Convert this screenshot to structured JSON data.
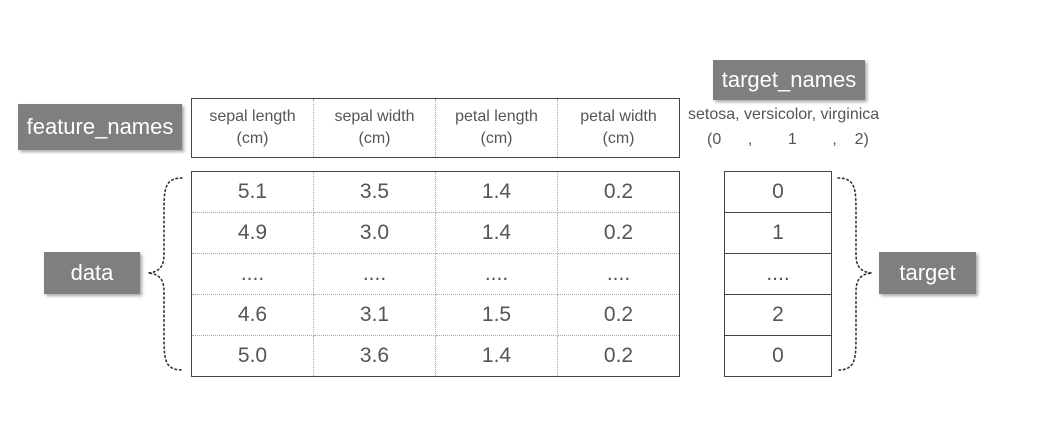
{
  "labels": {
    "feature_names": "feature_names",
    "data": "data",
    "target_names": "target_names",
    "target": "target"
  },
  "feature_headers": [
    [
      "sepal length",
      "(cm)"
    ],
    [
      "sepal width",
      "(cm)"
    ],
    [
      "petal length",
      "(cm)"
    ],
    [
      "petal width",
      "(cm)"
    ]
  ],
  "data_rows": [
    [
      "5.1",
      "3.5",
      "1.4",
      "0.2"
    ],
    [
      "4.9",
      "3.0",
      "1.4",
      "0.2"
    ],
    [
      "....",
      "....",
      "....",
      "...."
    ],
    [
      "4.6",
      "3.1",
      "1.5",
      "0.2"
    ],
    [
      "5.0",
      "3.6",
      "1.4",
      "0.2"
    ]
  ],
  "target_values": [
    "0",
    "1",
    "....",
    "2",
    "0"
  ],
  "target_names_text": "setosa, versicolor, virginica",
  "target_codes_text": "(0      ,        1        ,    2)",
  "colors": {
    "label_box": "#7f7f7f",
    "text": "#555555",
    "border": "#444444"
  }
}
